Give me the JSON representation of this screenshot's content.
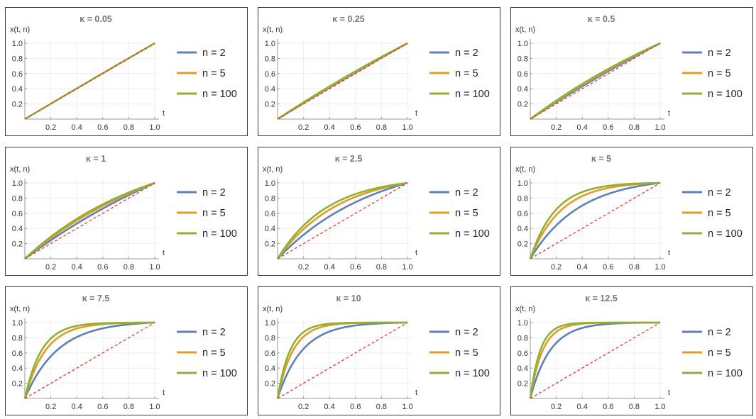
{
  "chart_data": {
    "type": "line",
    "xlabel": "t",
    "ylabel": "x(t, n)",
    "xlim": [
      0,
      1
    ],
    "ylim": [
      0,
      1
    ],
    "x_ticks": [
      "0.2",
      "0.4",
      "0.6",
      "0.8",
      "1.0"
    ],
    "y_ticks": [
      "0.2",
      "0.4",
      "0.6",
      "0.8",
      "1.0"
    ],
    "series_legend": [
      {
        "name": "n = 2",
        "n": 2,
        "color": "#5e81b5"
      },
      {
        "name": "n = 5",
        "n": 5,
        "color": "#e19c24"
      },
      {
        "name": "n = 100",
        "n": 100,
        "color": "#8fb032"
      }
    ],
    "reference_line": {
      "description": "dashed diagonal x = t",
      "color": "#e23a2e",
      "x": [
        0,
        1
      ],
      "y": [
        0,
        1
      ]
    },
    "panels": [
      {
        "title": "κ = 0.05",
        "kappa": 0.05
      },
      {
        "title": "κ = 0.25",
        "kappa": 0.25
      },
      {
        "title": "κ = 0.5",
        "kappa": 0.5
      },
      {
        "title": "κ = 1",
        "kappa": 1
      },
      {
        "title": "κ = 2.5",
        "kappa": 2.5
      },
      {
        "title": "κ = 5",
        "kappa": 5
      },
      {
        "title": "κ = 7.5",
        "kappa": 7.5
      },
      {
        "title": "κ = 10",
        "kappa": 10
      },
      {
        "title": "κ = 12.5",
        "kappa": 12.5
      }
    ]
  }
}
